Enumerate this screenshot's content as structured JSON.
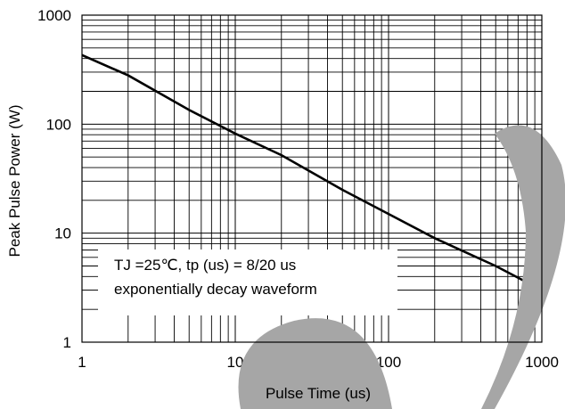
{
  "chart_data": {
    "type": "line",
    "title": "",
    "xlabel": "Pulse Time (us)",
    "ylabel": "Peak Pulse Power (W)",
    "xscale": "log",
    "yscale": "log",
    "xlim": [
      1,
      1000
    ],
    "ylim": [
      1,
      1000
    ],
    "grid": true,
    "x_ticks": [
      "1",
      "10",
      "100",
      "1000"
    ],
    "y_ticks": [
      "1",
      "10",
      "100",
      "1000"
    ],
    "series": [
      {
        "x": [
          1,
          2,
          5,
          10,
          20,
          50,
          100,
          200,
          500,
          1000
        ],
        "y": [
          430,
          280,
          135,
          82,
          52,
          25,
          15,
          9,
          5,
          3
        ]
      }
    ],
    "annotation": {
      "line1": "TJ =25℃, tp (us) = 8/20 us",
      "line2": "exponentially decay waveform"
    },
    "colors": {
      "line": "#000000",
      "grid": "#000000",
      "watermark": "#a6a6a6"
    }
  }
}
